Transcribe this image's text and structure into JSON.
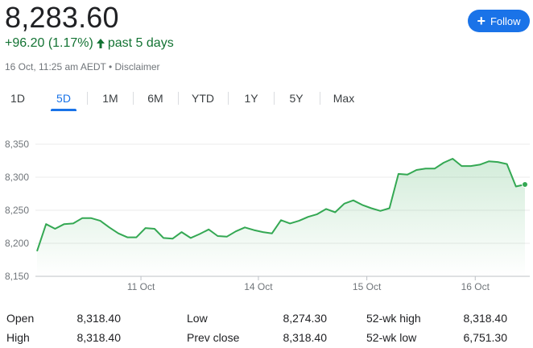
{
  "quote": {
    "price": "8,283.60",
    "change": "+96.20 (1.17%)",
    "period": "past 5 days",
    "timestamp": "16 Oct, 11:25 am AEDT",
    "bullet": "•",
    "disclaimer": "Disclaimer"
  },
  "follow_button": {
    "icon": "plus-icon",
    "label": "Follow"
  },
  "tabs": [
    {
      "label": "1D"
    },
    {
      "label": "5D",
      "active": true
    },
    {
      "label": "1M"
    },
    {
      "label": "6M"
    },
    {
      "label": "YTD"
    },
    {
      "label": "1Y"
    },
    {
      "label": "5Y"
    },
    {
      "label": "Max"
    }
  ],
  "colors": {
    "up": "#137333",
    "line": "#34a853",
    "accent": "#1a73e8"
  },
  "chart_data": {
    "type": "area",
    "ylim": [
      8150,
      8350
    ],
    "yticks": [
      "8,350",
      "8,300",
      "8,250",
      "8,200",
      "8,150"
    ],
    "ytick_values": [
      8350,
      8300,
      8250,
      8200,
      8150
    ],
    "xticks": [
      "11 Oct",
      "14 Oct",
      "15 Oct",
      "16 Oct"
    ],
    "xtick_index": [
      11.5,
      24.5,
      36.5,
      48.5
    ],
    "grid": true,
    "values": [
      8188,
      8229,
      8222,
      8229,
      8230,
      8238,
      8238,
      8234,
      8224,
      8215,
      8209,
      8209,
      8223,
      8222,
      8208,
      8207,
      8217,
      8208,
      8214,
      8221,
      8211,
      8210,
      8218,
      8224,
      8220,
      8217,
      8215,
      8235,
      8230,
      8234,
      8240,
      8244,
      8252,
      8247,
      8260,
      8265,
      8258,
      8253,
      8249,
      8253,
      8305,
      8304,
      8311,
      8313,
      8313,
      8322,
      8328,
      8317,
      8317,
      8319,
      8324,
      8323,
      8320,
      8286,
      8289
    ]
  },
  "stats": {
    "open_label": "Open",
    "open": "8,318.40",
    "high_label": "High",
    "high": "8,318.40",
    "low_label": "Low",
    "low": "8,274.30",
    "prev_close_label": "Prev close",
    "prev_close": "8,318.40",
    "wk52_high_label": "52-wk high",
    "wk52_high": "8,318.40",
    "wk52_low_label": "52-wk low",
    "wk52_low": "6,751.30"
  }
}
